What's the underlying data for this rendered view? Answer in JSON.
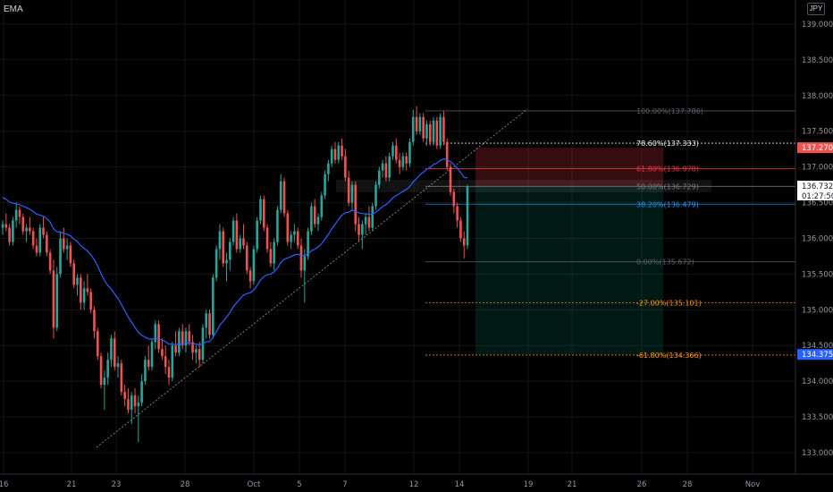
{
  "indicator": {
    "label": "EMA"
  },
  "currency": "JPY",
  "colors": {
    "up": "#26a69a",
    "down": "#ef5350",
    "ema": "#2962ff",
    "fib_100": "#5d606b",
    "fib_786": "#f5f5f5",
    "fib_618": "#f23645",
    "fib_50": "#787b86",
    "fib_382": "#2196f3",
    "fib_0": "#5d606b",
    "fib_ext": "#ff9800",
    "trendline": "#9598a1",
    "axis_text": "#9598a1"
  },
  "chart_data": {
    "type": "candlestick",
    "ema_label": "EMA",
    "y_axis": {
      "ticks": [
        "139.000",
        "138.500",
        "138.000",
        "137.500",
        "137.000",
        "136.500",
        "136.000",
        "135.500",
        "135.000",
        "134.500",
        "134.000",
        "133.500",
        "133.000"
      ]
    },
    "x_axis": {
      "ticks": [
        "16",
        "21",
        "23",
        "28",
        "Oct",
        "5",
        "7",
        "12",
        "14",
        "19",
        "21",
        "26",
        "28",
        "Nov"
      ]
    },
    "fib_levels": [
      {
        "label": "100.00%(137.786)",
        "price": 137.786,
        "key": "fib_100"
      },
      {
        "label": "78.60%(137.333)",
        "price": 137.333,
        "key": "fib_786"
      },
      {
        "label": "61.80%(136.978)",
        "price": 136.978,
        "key": "fib_618"
      },
      {
        "label": "50.00%(136.729)",
        "price": 136.729,
        "key": "fib_50"
      },
      {
        "label": "38.20%(136.479)",
        "price": 136.479,
        "key": "fib_382"
      },
      {
        "label": "0.00%(135.672)",
        "price": 135.672,
        "key": "fib_0"
      },
      {
        "label": "-27.00%(135.101)",
        "price": 135.101,
        "key": "fib_ext"
      },
      {
        "label": "-61.80%(134.366)",
        "price": 134.366,
        "key": "fib_ext"
      }
    ],
    "price_tags": [
      {
        "text": "137.270",
        "price": 137.27,
        "bg": "#ef5350",
        "fg": "#ffffff"
      },
      {
        "text": "136.732",
        "price": 136.732,
        "bg": "#ffffff",
        "fg": "#131722",
        "countdown": "01:27:50"
      },
      {
        "text": "134.375",
        "price": 134.375,
        "bg": "#2962ff",
        "fg": "#ffffff"
      }
    ],
    "position": {
      "entry": 136.732,
      "stop": 137.27,
      "target": 134.375
    },
    "candles": [
      [
        136.15,
        136.25,
        136.05,
        136.2
      ],
      [
        136.2,
        136.35,
        136.1,
        136.15
      ],
      [
        136.15,
        136.2,
        135.9,
        135.95
      ],
      [
        135.95,
        136.3,
        135.9,
        136.25
      ],
      [
        136.25,
        136.5,
        136.15,
        136.4
      ],
      [
        136.4,
        136.45,
        136.2,
        136.3
      ],
      [
        136.3,
        136.35,
        136.05,
        136.1
      ],
      [
        136.1,
        136.2,
        135.95,
        136.15
      ],
      [
        136.15,
        136.3,
        136.05,
        136.1
      ],
      [
        136.1,
        136.15,
        135.85,
        135.9
      ],
      [
        135.9,
        136.0,
        135.75,
        135.8
      ],
      [
        135.8,
        136.2,
        135.75,
        136.15
      ],
      [
        136.15,
        136.3,
        136.0,
        136.05
      ],
      [
        136.05,
        136.1,
        135.75,
        135.8
      ],
      [
        135.8,
        135.85,
        135.5,
        135.55
      ],
      [
        135.55,
        135.7,
        134.6,
        134.75
      ],
      [
        134.75,
        135.6,
        134.7,
        135.5
      ],
      [
        135.5,
        136.1,
        135.45,
        136.0
      ],
      [
        136.0,
        136.15,
        135.8,
        135.85
      ],
      [
        135.85,
        136.0,
        135.7,
        135.9
      ],
      [
        135.9,
        135.95,
        135.6,
        135.65
      ],
      [
        135.65,
        135.7,
        135.3,
        135.35
      ],
      [
        135.35,
        135.5,
        135.2,
        135.45
      ],
      [
        135.45,
        135.5,
        135.0,
        135.1
      ],
      [
        135.1,
        135.4,
        135.0,
        135.3
      ],
      [
        135.3,
        135.5,
        135.2,
        135.25
      ],
      [
        135.25,
        135.3,
        134.95,
        135.0
      ],
      [
        135.0,
        135.05,
        134.6,
        134.7
      ],
      [
        134.7,
        134.75,
        134.3,
        134.35
      ],
      [
        134.35,
        134.4,
        133.9,
        133.95
      ],
      [
        133.95,
        134.15,
        133.6,
        134.05
      ],
      [
        134.05,
        134.4,
        133.95,
        134.3
      ],
      [
        134.3,
        134.65,
        134.2,
        134.6
      ],
      [
        134.6,
        134.7,
        134.15,
        134.2
      ],
      [
        134.2,
        134.35,
        134.05,
        134.25
      ],
      [
        134.25,
        134.3,
        133.8,
        133.85
      ],
      [
        133.85,
        133.95,
        133.65,
        133.75
      ],
      [
        133.75,
        133.9,
        133.55,
        133.6
      ],
      [
        133.6,
        133.85,
        133.4,
        133.8
      ],
      [
        133.8,
        133.9,
        133.55,
        133.65
      ],
      [
        133.65,
        133.8,
        133.15,
        133.7
      ],
      [
        133.7,
        134.1,
        133.65,
        134.0
      ],
      [
        134.0,
        134.35,
        133.95,
        134.3
      ],
      [
        134.3,
        134.5,
        134.15,
        134.2
      ],
      [
        134.2,
        134.6,
        134.15,
        134.55
      ],
      [
        134.55,
        134.85,
        134.45,
        134.8
      ],
      [
        134.8,
        134.85,
        134.4,
        134.45
      ],
      [
        134.45,
        134.6,
        134.3,
        134.35
      ],
      [
        134.35,
        134.5,
        134.1,
        134.2
      ],
      [
        134.2,
        134.3,
        133.95,
        134.05
      ],
      [
        134.05,
        134.55,
        134.0,
        134.5
      ],
      [
        134.5,
        134.7,
        134.35,
        134.4
      ],
      [
        134.4,
        134.75,
        134.35,
        134.7
      ],
      [
        134.7,
        134.8,
        134.45,
        134.5
      ],
      [
        134.5,
        134.75,
        134.4,
        134.7
      ],
      [
        134.7,
        134.8,
        134.5,
        134.55
      ],
      [
        134.55,
        134.65,
        134.3,
        134.4
      ],
      [
        134.4,
        134.5,
        134.25,
        134.45
      ],
      [
        134.45,
        134.55,
        134.2,
        134.3
      ],
      [
        134.3,
        134.8,
        134.25,
        134.75
      ],
      [
        134.75,
        135.0,
        134.6,
        134.95
      ],
      [
        134.95,
        135.0,
        134.6,
        134.65
      ],
      [
        134.65,
        135.5,
        134.6,
        135.45
      ],
      [
        135.45,
        135.9,
        135.4,
        135.85
      ],
      [
        135.85,
        136.2,
        135.7,
        136.1
      ],
      [
        136.1,
        136.15,
        135.6,
        135.65
      ],
      [
        135.65,
        135.8,
        135.4,
        135.7
      ],
      [
        135.7,
        136.0,
        135.55,
        135.95
      ],
      [
        135.95,
        136.3,
        135.9,
        136.25
      ],
      [
        136.25,
        136.35,
        135.8,
        135.85
      ],
      [
        135.85,
        136.05,
        135.8,
        136.0
      ],
      [
        136.0,
        136.2,
        135.85,
        135.9
      ],
      [
        135.9,
        135.95,
        135.5,
        135.55
      ],
      [
        135.55,
        135.6,
        135.3,
        135.4
      ],
      [
        135.4,
        135.9,
        135.35,
        135.85
      ],
      [
        135.85,
        136.3,
        135.8,
        136.25
      ],
      [
        136.25,
        136.6,
        136.2,
        136.55
      ],
      [
        136.55,
        136.6,
        136.1,
        136.15
      ],
      [
        136.15,
        136.2,
        135.8,
        135.85
      ],
      [
        135.85,
        135.95,
        135.6,
        135.65
      ],
      [
        135.65,
        136.0,
        135.55,
        135.95
      ],
      [
        135.95,
        136.45,
        135.9,
        136.4
      ],
      [
        136.4,
        136.9,
        136.35,
        136.8
      ],
      [
        136.8,
        136.85,
        136.3,
        136.35
      ],
      [
        136.35,
        136.4,
        135.9,
        135.95
      ],
      [
        135.95,
        136.1,
        135.85,
        136.05
      ],
      [
        136.05,
        136.2,
        135.95,
        136.1
      ],
      [
        136.1,
        136.15,
        135.85,
        135.9
      ],
      [
        135.9,
        136.0,
        135.45,
        135.55
      ],
      [
        135.55,
        135.85,
        135.1,
        135.75
      ],
      [
        135.75,
        136.15,
        135.7,
        136.1
      ],
      [
        136.1,
        136.5,
        136.05,
        136.45
      ],
      [
        136.45,
        136.55,
        136.15,
        136.2
      ],
      [
        136.2,
        136.35,
        136.1,
        136.3
      ],
      [
        136.3,
        136.65,
        136.25,
        136.6
      ],
      [
        136.6,
        136.95,
        136.55,
        136.9
      ],
      [
        136.9,
        137.1,
        136.8,
        137.05
      ],
      [
        137.05,
        137.3,
        137.0,
        137.25
      ],
      [
        137.25,
        137.35,
        137.05,
        137.1
      ],
      [
        137.1,
        137.35,
        137.05,
        137.3
      ],
      [
        137.3,
        137.4,
        137.1,
        137.15
      ],
      [
        137.15,
        137.25,
        136.8,
        136.85
      ],
      [
        136.85,
        136.95,
        136.45,
        136.5
      ],
      [
        136.5,
        136.8,
        136.4,
        136.75
      ],
      [
        136.75,
        136.8,
        136.1,
        136.2
      ],
      [
        136.2,
        136.3,
        135.95,
        136.05
      ],
      [
        136.05,
        136.25,
        135.85,
        136.2
      ],
      [
        136.2,
        136.35,
        136.05,
        136.3
      ],
      [
        136.3,
        136.45,
        136.1,
        136.15
      ],
      [
        136.15,
        136.5,
        136.1,
        136.45
      ],
      [
        136.45,
        136.8,
        136.4,
        136.75
      ],
      [
        136.75,
        137.0,
        136.7,
        136.95
      ],
      [
        136.95,
        137.1,
        136.85,
        137.05
      ],
      [
        137.05,
        137.15,
        136.8,
        136.85
      ],
      [
        136.85,
        137.2,
        136.8,
        137.15
      ],
      [
        137.15,
        137.35,
        137.1,
        137.3
      ],
      [
        137.3,
        137.4,
        137.05,
        137.1
      ],
      [
        137.1,
        137.2,
        136.9,
        137.0
      ],
      [
        137.0,
        137.2,
        136.95,
        137.15
      ],
      [
        137.15,
        137.2,
        136.95,
        137.05
      ],
      [
        137.05,
        137.4,
        137.0,
        137.35
      ],
      [
        137.35,
        137.8,
        137.3,
        137.7
      ],
      [
        137.7,
        137.85,
        137.45,
        137.5
      ],
      [
        137.5,
        137.75,
        137.45,
        137.7
      ],
      [
        137.7,
        137.75,
        137.35,
        137.4
      ],
      [
        137.4,
        137.65,
        137.3,
        137.6
      ],
      [
        137.6,
        137.65,
        137.3,
        137.35
      ],
      [
        137.35,
        137.7,
        137.3,
        137.65
      ],
      [
        137.65,
        137.7,
        137.25,
        137.3
      ],
      [
        137.3,
        137.75,
        137.25,
        137.7
      ],
      [
        137.7,
        137.78,
        137.3,
        137.35
      ],
      [
        137.35,
        137.4,
        136.95,
        137.0
      ],
      [
        137.0,
        137.05,
        136.6,
        136.65
      ],
      [
        136.65,
        136.7,
        136.35,
        136.45
      ],
      [
        136.45,
        136.5,
        136.15,
        136.25
      ],
      [
        136.25,
        136.3,
        135.95,
        136.0
      ],
      [
        136.0,
        136.1,
        135.72,
        135.9
      ],
      [
        135.9,
        136.75,
        135.85,
        136.73
      ]
    ]
  }
}
